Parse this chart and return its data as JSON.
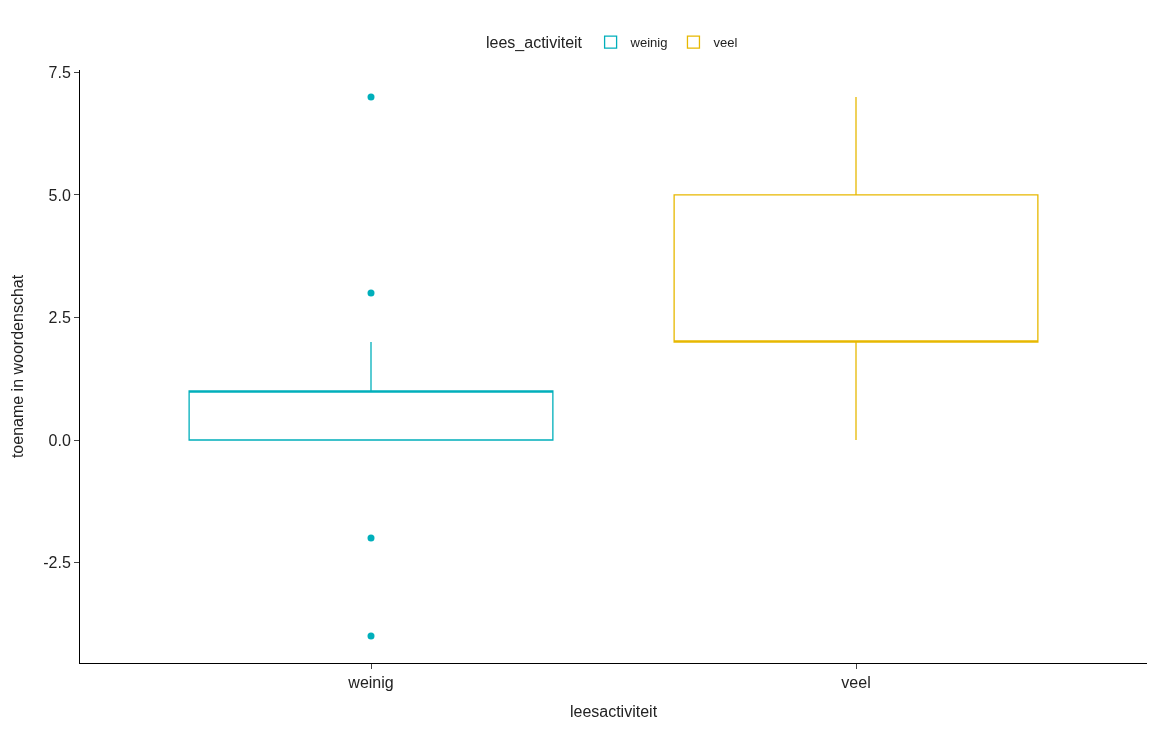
{
  "chart_data": {
    "type": "box",
    "xlabel": "leesactiviteit",
    "ylabel": "toename in woordenschat",
    "legend_title": "lees_activiteit",
    "categories": [
      "weinig",
      "veel"
    ],
    "series": [
      {
        "name": "weinig",
        "color": "#00afbb",
        "boxes": [
          {
            "low": 0,
            "q1": 0,
            "median": 1,
            "q3": 1,
            "high": 2,
            "outliers": [
              7,
              3,
              -2,
              -4
            ]
          },
          null
        ]
      },
      {
        "name": "veel",
        "color": "#e7b800",
        "boxes": [
          null,
          {
            "low": 0,
            "q1": 2,
            "median": 2,
            "q3": 5,
            "high": 7
          }
        ]
      }
    ],
    "ylim": [
      -4.55,
      7.55
    ],
    "yticks": [
      {
        "value": -2.5,
        "label": "-2.5"
      },
      {
        "value": 0,
        "label": "0.0"
      },
      {
        "value": 2.5,
        "label": "2.5"
      },
      {
        "value": 5,
        "label": "5.0"
      },
      {
        "value": 7.5,
        "label": "7.5"
      }
    ],
    "legend": "top"
  }
}
